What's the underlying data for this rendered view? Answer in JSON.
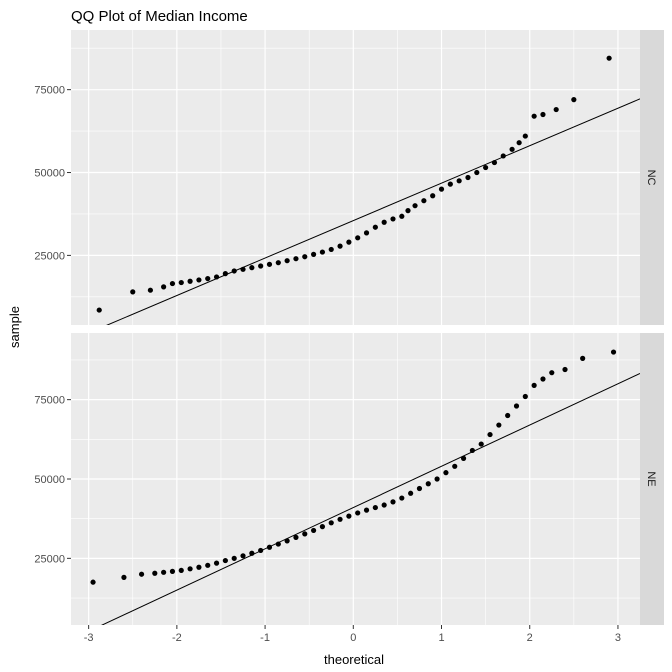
{
  "chart_data": {
    "type": "scatter",
    "title": "QQ Plot of Median Income",
    "xlabel": "theoretical",
    "ylabel": "sample",
    "xlim": [
      -3.2,
      3.25
    ],
    "x_ticks": [
      -3,
      -2,
      -1,
      0,
      1,
      2,
      3
    ],
    "y_ticks": [
      25000,
      50000,
      75000
    ],
    "grid": true,
    "colors": {
      "panel_bg": "#ebebeb",
      "grid": "#ffffff",
      "strip_bg": "#d9d9d9",
      "point": "#000000",
      "line": "#000000"
    },
    "panels": [
      {
        "strip_label": "NC",
        "ylim": [
          4000,
          93000
        ],
        "qq_line": {
          "intercept": 35500,
          "slope": 11300
        },
        "points": [
          [
            -2.88,
            8500
          ],
          [
            -2.5,
            14000
          ],
          [
            -2.3,
            14500
          ],
          [
            -2.15,
            15500
          ],
          [
            -2.05,
            16500
          ],
          [
            -1.95,
            16800
          ],
          [
            -1.85,
            17200
          ],
          [
            -1.75,
            17600
          ],
          [
            -1.65,
            18000
          ],
          [
            -1.55,
            18500
          ],
          [
            -1.45,
            19500
          ],
          [
            -1.35,
            20300
          ],
          [
            -1.25,
            20800
          ],
          [
            -1.15,
            21300
          ],
          [
            -1.05,
            21800
          ],
          [
            -0.95,
            22300
          ],
          [
            -0.85,
            22800
          ],
          [
            -0.75,
            23400
          ],
          [
            -0.65,
            24000
          ],
          [
            -0.55,
            24600
          ],
          [
            -0.45,
            25300
          ],
          [
            -0.35,
            26000
          ],
          [
            -0.25,
            26800
          ],
          [
            -0.15,
            27800
          ],
          [
            -0.05,
            29000
          ],
          [
            0.05,
            30300
          ],
          [
            0.15,
            31800
          ],
          [
            0.25,
            33500
          ],
          [
            0.35,
            35000
          ],
          [
            0.45,
            36000
          ],
          [
            0.55,
            36800
          ],
          [
            0.62,
            38500
          ],
          [
            0.7,
            40000
          ],
          [
            0.8,
            41500
          ],
          [
            0.9,
            43000
          ],
          [
            1.0,
            45000
          ],
          [
            1.1,
            46500
          ],
          [
            1.2,
            47500
          ],
          [
            1.3,
            48500
          ],
          [
            1.4,
            50000
          ],
          [
            1.5,
            51500
          ],
          [
            1.6,
            53000
          ],
          [
            1.7,
            55000
          ],
          [
            1.8,
            57000
          ],
          [
            1.88,
            59000
          ],
          [
            1.95,
            61000
          ],
          [
            2.05,
            67000
          ],
          [
            2.15,
            67500
          ],
          [
            2.3,
            69000
          ],
          [
            2.5,
            72000
          ],
          [
            2.9,
            84500
          ]
        ]
      },
      {
        "strip_label": "NE",
        "ylim": [
          4000,
          96000
        ],
        "qq_line": {
          "intercept": 41000,
          "slope": 13000
        },
        "points": [
          [
            -2.95,
            17500
          ],
          [
            -2.6,
            19000
          ],
          [
            -2.4,
            20000
          ],
          [
            -2.25,
            20300
          ],
          [
            -2.15,
            20600
          ],
          [
            -2.05,
            20900
          ],
          [
            -1.95,
            21200
          ],
          [
            -1.85,
            21700
          ],
          [
            -1.75,
            22200
          ],
          [
            -1.65,
            22800
          ],
          [
            -1.55,
            23500
          ],
          [
            -1.45,
            24300
          ],
          [
            -1.35,
            25000
          ],
          [
            -1.25,
            25800
          ],
          [
            -1.15,
            26600
          ],
          [
            -1.05,
            27500
          ],
          [
            -0.95,
            28500
          ],
          [
            -0.85,
            29500
          ],
          [
            -0.75,
            30500
          ],
          [
            -0.65,
            31600
          ],
          [
            -0.55,
            32700
          ],
          [
            -0.45,
            33800
          ],
          [
            -0.35,
            35000
          ],
          [
            -0.25,
            36200
          ],
          [
            -0.15,
            37300
          ],
          [
            -0.05,
            38300
          ],
          [
            0.05,
            39300
          ],
          [
            0.15,
            40200
          ],
          [
            0.25,
            41000
          ],
          [
            0.35,
            41800
          ],
          [
            0.45,
            42800
          ],
          [
            0.55,
            44000
          ],
          [
            0.65,
            45500
          ],
          [
            0.75,
            47000
          ],
          [
            0.85,
            48500
          ],
          [
            0.95,
            50000
          ],
          [
            1.05,
            52000
          ],
          [
            1.15,
            54000
          ],
          [
            1.25,
            56500
          ],
          [
            1.35,
            59000
          ],
          [
            1.45,
            61000
          ],
          [
            1.55,
            64000
          ],
          [
            1.65,
            67000
          ],
          [
            1.75,
            70000
          ],
          [
            1.85,
            73000
          ],
          [
            1.95,
            76000
          ],
          [
            2.05,
            79500
          ],
          [
            2.15,
            81500
          ],
          [
            2.25,
            83500
          ],
          [
            2.4,
            84500
          ],
          [
            2.6,
            88000
          ],
          [
            2.95,
            90000
          ]
        ]
      }
    ]
  }
}
